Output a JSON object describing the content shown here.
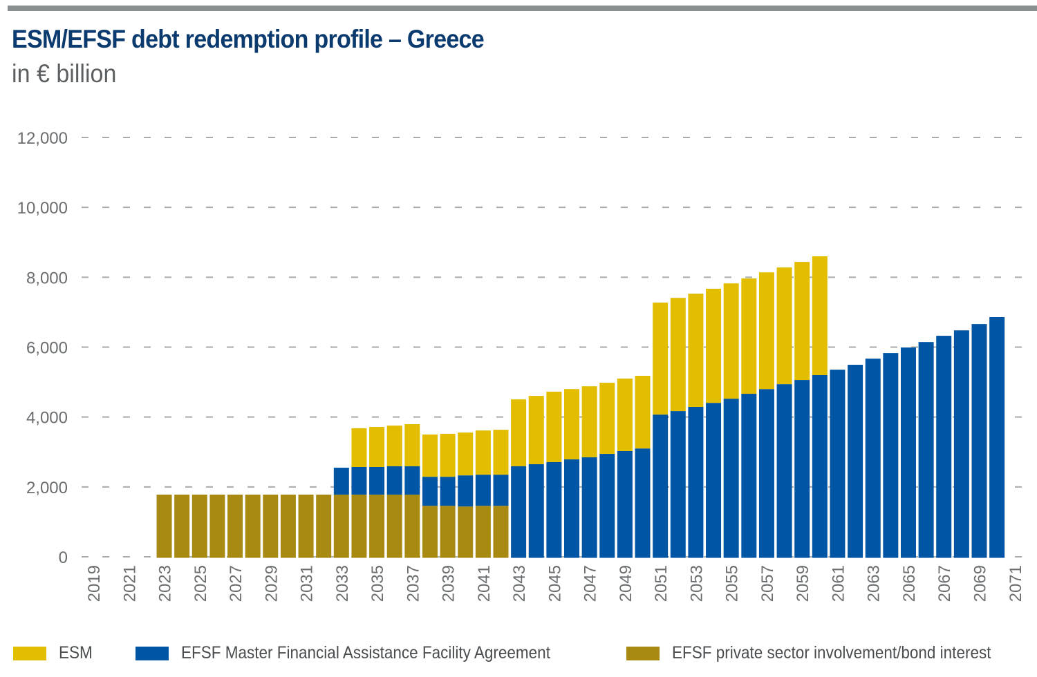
{
  "header": {
    "title": "ESM/EFSF debt redemption profile – Greece",
    "subtitle": "in € billion"
  },
  "colors": {
    "esm": "#e2bd00",
    "efsf_mfafa": "#0055a5",
    "efsf_psi": "#a88a13",
    "gridline": "#a8aaab",
    "top_rule": "#8a8f91",
    "title": "#0b3a6e"
  },
  "legend": [
    {
      "key": "esm",
      "label": "ESM"
    },
    {
      "key": "efsf_mfafa",
      "label": "EFSF Master Financial Assistance Facility Agreement"
    },
    {
      "key": "efsf_psi",
      "label": "EFSF private sector involvement/bond interest"
    }
  ],
  "chart_data": {
    "type": "bar",
    "stacked": true,
    "title": "ESM/EFSF debt redemption profile – Greece",
    "subtitle": "in € billion",
    "xlabel": "",
    "ylabel": "",
    "ylim": [
      0,
      12000
    ],
    "yticks": [
      0,
      2000,
      4000,
      6000,
      8000,
      10000,
      12000
    ],
    "ytick_labels": [
      "0",
      "2,000",
      "4,000",
      "6,000",
      "8,000",
      "10,000",
      "12,000"
    ],
    "xtick_labels": [
      "2019",
      "2021",
      "2023",
      "2025",
      "2027",
      "2029",
      "2031",
      "2033",
      "2035",
      "2037",
      "2039",
      "2041",
      "2043",
      "2045",
      "2047",
      "2049",
      "2051",
      "2053",
      "2055",
      "2057",
      "2059",
      "2061",
      "2063",
      "2065",
      "2067",
      "2069",
      "2071"
    ],
    "grid": "horizontal dashed",
    "legend_position": "bottom",
    "categories": [
      "2019",
      "2020",
      "2021",
      "2022",
      "2023",
      "2024",
      "2025",
      "2026",
      "2027",
      "2028",
      "2029",
      "2030",
      "2031",
      "2032",
      "2033",
      "2034",
      "2035",
      "2036",
      "2037",
      "2038",
      "2039",
      "2040",
      "2041",
      "2042",
      "2043",
      "2044",
      "2045",
      "2046",
      "2047",
      "2048",
      "2049",
      "2050",
      "2051",
      "2052",
      "2053",
      "2054",
      "2055",
      "2056",
      "2057",
      "2058",
      "2059",
      "2060",
      "2061",
      "2062",
      "2063",
      "2064",
      "2065",
      "2066",
      "2067",
      "2068",
      "2069",
      "2070",
      "2071"
    ],
    "series": [
      {
        "name": "EFSF private sector involvement/bond interest",
        "key": "efsf_psi",
        "values": [
          0,
          0,
          0,
          0,
          1780,
          1780,
          1780,
          1780,
          1780,
          1780,
          1780,
          1780,
          1780,
          1780,
          1780,
          1780,
          1780,
          1780,
          1780,
          1460,
          1460,
          1440,
          1460,
          1460,
          0,
          0,
          0,
          0,
          0,
          0,
          0,
          0,
          0,
          0,
          0,
          0,
          0,
          0,
          0,
          0,
          0,
          0,
          0,
          0,
          0,
          0,
          0,
          0,
          0,
          0,
          0,
          0,
          0
        ]
      },
      {
        "name": "EFSF Master Financial Assistance Facility Agreement",
        "key": "efsf_mfafa",
        "values": [
          0,
          0,
          0,
          0,
          0,
          0,
          0,
          0,
          0,
          0,
          0,
          0,
          0,
          0,
          770,
          790,
          790,
          810,
          810,
          830,
          830,
          890,
          890,
          890,
          2590,
          2650,
          2710,
          2790,
          2850,
          2945,
          3025,
          3100,
          4070,
          4170,
          4290,
          4405,
          4525,
          4665,
          4800,
          4940,
          5060,
          5200,
          5355,
          5495,
          5670,
          5830,
          5990,
          6145,
          6325,
          6480,
          6660,
          6860,
          0
        ]
      },
      {
        "name": "ESM",
        "key": "esm",
        "values": [
          0,
          0,
          0,
          0,
          0,
          0,
          0,
          0,
          0,
          0,
          0,
          0,
          0,
          0,
          0,
          1110,
          1145,
          1165,
          1205,
          1210,
          1230,
          1225,
          1265,
          1285,
          1915,
          1955,
          2015,
          2010,
          2030,
          2035,
          2075,
          2080,
          3205,
          3240,
          3240,
          3265,
          3300,
          3300,
          3340,
          3340,
          3380,
          3400,
          0,
          0,
          0,
          0,
          0,
          0,
          0,
          0,
          0,
          0,
          0
        ]
      }
    ]
  }
}
